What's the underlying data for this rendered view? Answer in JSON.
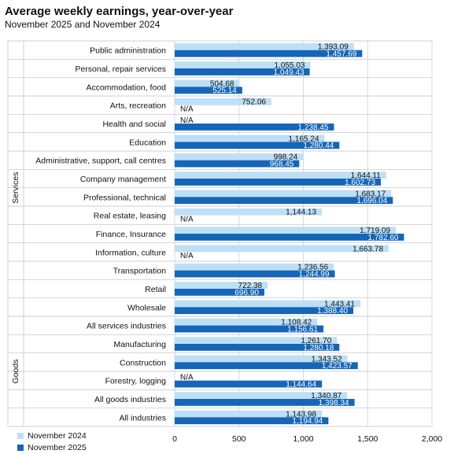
{
  "title": "Average weekly earnings, year-over-year",
  "subtitle": "November  2025 and November  2024",
  "colors": {
    "nov2024": "#bde0f7",
    "nov2025": "#1565b8",
    "grid": "#d9d9d9",
    "separator": "#bfbfbf"
  },
  "chart_data": {
    "type": "bar",
    "orientation": "horizontal",
    "categories": [
      "Public administration",
      "Personal, repair services",
      "Accommodation, food",
      "Arts, recreation",
      "Health and social",
      "Education",
      "Administrative, support, call centres",
      "Company management",
      "Professional, technical",
      "Real estate, leasing",
      "Finance, Insurance",
      "Information, culture",
      "Transportation",
      "Retail",
      "Wholesale",
      "All services industries",
      "Manufacturing",
      "Construction",
      "Forestry, logging",
      "All goods industries",
      "All industries"
    ],
    "groups": [
      {
        "name": "Services",
        "from": 0,
        "to": 15
      },
      {
        "name": "Goods",
        "from": 16,
        "to": 19
      }
    ],
    "series": [
      {
        "name": "November 2024",
        "values": [
          1393.09,
          1055.03,
          504.68,
          752.06,
          null,
          1165.24,
          998.24,
          1644.11,
          1683.17,
          1144.13,
          1719.09,
          1663.78,
          1236.56,
          722.38,
          1443.41,
          1108.42,
          1261.7,
          1343.52,
          null,
          1340.87,
          1143.98
        ],
        "labels": [
          "1,393.09",
          "1,055.03",
          "504.68",
          "752.06",
          "N/A",
          "1,165.24",
          "998.24",
          "1,644.11",
          "1,683.17",
          "1,144.13",
          "1,719.09",
          "1,663.78",
          "1,236.56",
          "722.38",
          "1,443.41",
          "1,108.42",
          "1,261.70",
          "1,343.52",
          "N/A",
          "1,340.87",
          "1,143.98"
        ]
      },
      {
        "name": "November 2025",
        "values": [
          1457.69,
          1049.43,
          525.14,
          null,
          1238.45,
          1280.44,
          968.45,
          1602.73,
          1696.04,
          null,
          1782.6,
          null,
          1244.99,
          696.9,
          1388.4,
          1156.61,
          1280.18,
          1423.57,
          1144.64,
          1398.34,
          1194.94
        ],
        "labels": [
          "1,457.69",
          "1,049.43",
          "525.14",
          "N/A",
          "1,238.45",
          "1,280.44",
          "968.45",
          "1,602.73",
          "1,696.04",
          "N/A",
          "1,782.60",
          "N/A",
          "1,244.99",
          "696.90",
          "1,388.40",
          "1,156.61",
          "1,280.18",
          "1,423.57",
          "1,144.64",
          "1,398.34",
          "1,194.94"
        ]
      }
    ],
    "xlim": [
      0,
      2000
    ],
    "xticks": [
      0,
      500,
      1000,
      1500,
      2000
    ],
    "xtick_labels": [
      "0",
      "500",
      "1,000",
      "1,500",
      "2,000"
    ],
    "grid": true,
    "legend_position": "bottom-left"
  }
}
